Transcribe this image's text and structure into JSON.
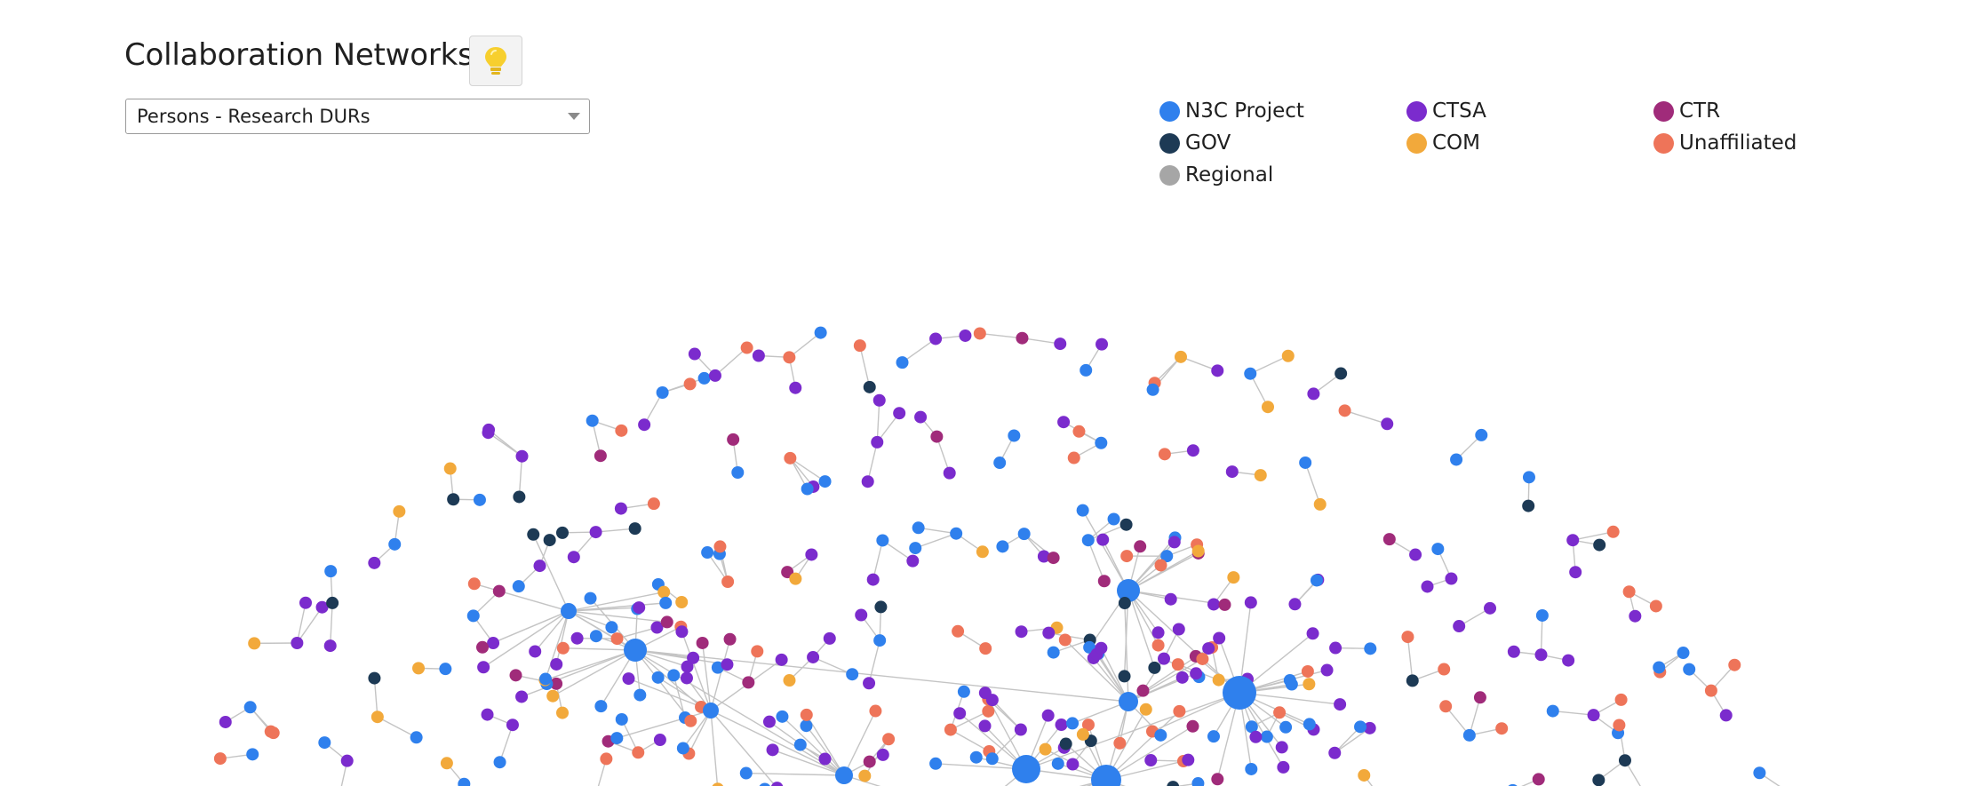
{
  "header": {
    "title": "Collaboration Networks",
    "tip_icon": "lightbulb-icon"
  },
  "selector": {
    "value": "Persons - Research DURs"
  },
  "legend": [
    {
      "label": "N3C Project",
      "color": "#2f80ed"
    },
    {
      "label": "CTSA",
      "color": "#7b2bcd"
    },
    {
      "label": "CTR",
      "color": "#a02b7a"
    },
    {
      "label": "GOV",
      "color": "#1d3a55"
    },
    {
      "label": "COM",
      "color": "#f2a93b"
    },
    {
      "label": "Unaffiliated",
      "color": "#ee7459"
    },
    {
      "label": "Regional",
      "color": "#a6a6a6"
    }
  ],
  "colors": {
    "edge": "#c4c4c4",
    "N3C Project": "#2f80ed",
    "CTSA": "#7b2bcd",
    "CTR": "#a02b7a",
    "GOV": "#1d3a55",
    "COM": "#f2a93b",
    "Unaffiliated": "#ee7459",
    "Regional": "#a6a6a6"
  },
  "network": {
    "node_types": [
      "N3C Project",
      "CTSA",
      "CTR",
      "GOV",
      "COM",
      "Unaffiliated",
      "Regional"
    ]
  }
}
